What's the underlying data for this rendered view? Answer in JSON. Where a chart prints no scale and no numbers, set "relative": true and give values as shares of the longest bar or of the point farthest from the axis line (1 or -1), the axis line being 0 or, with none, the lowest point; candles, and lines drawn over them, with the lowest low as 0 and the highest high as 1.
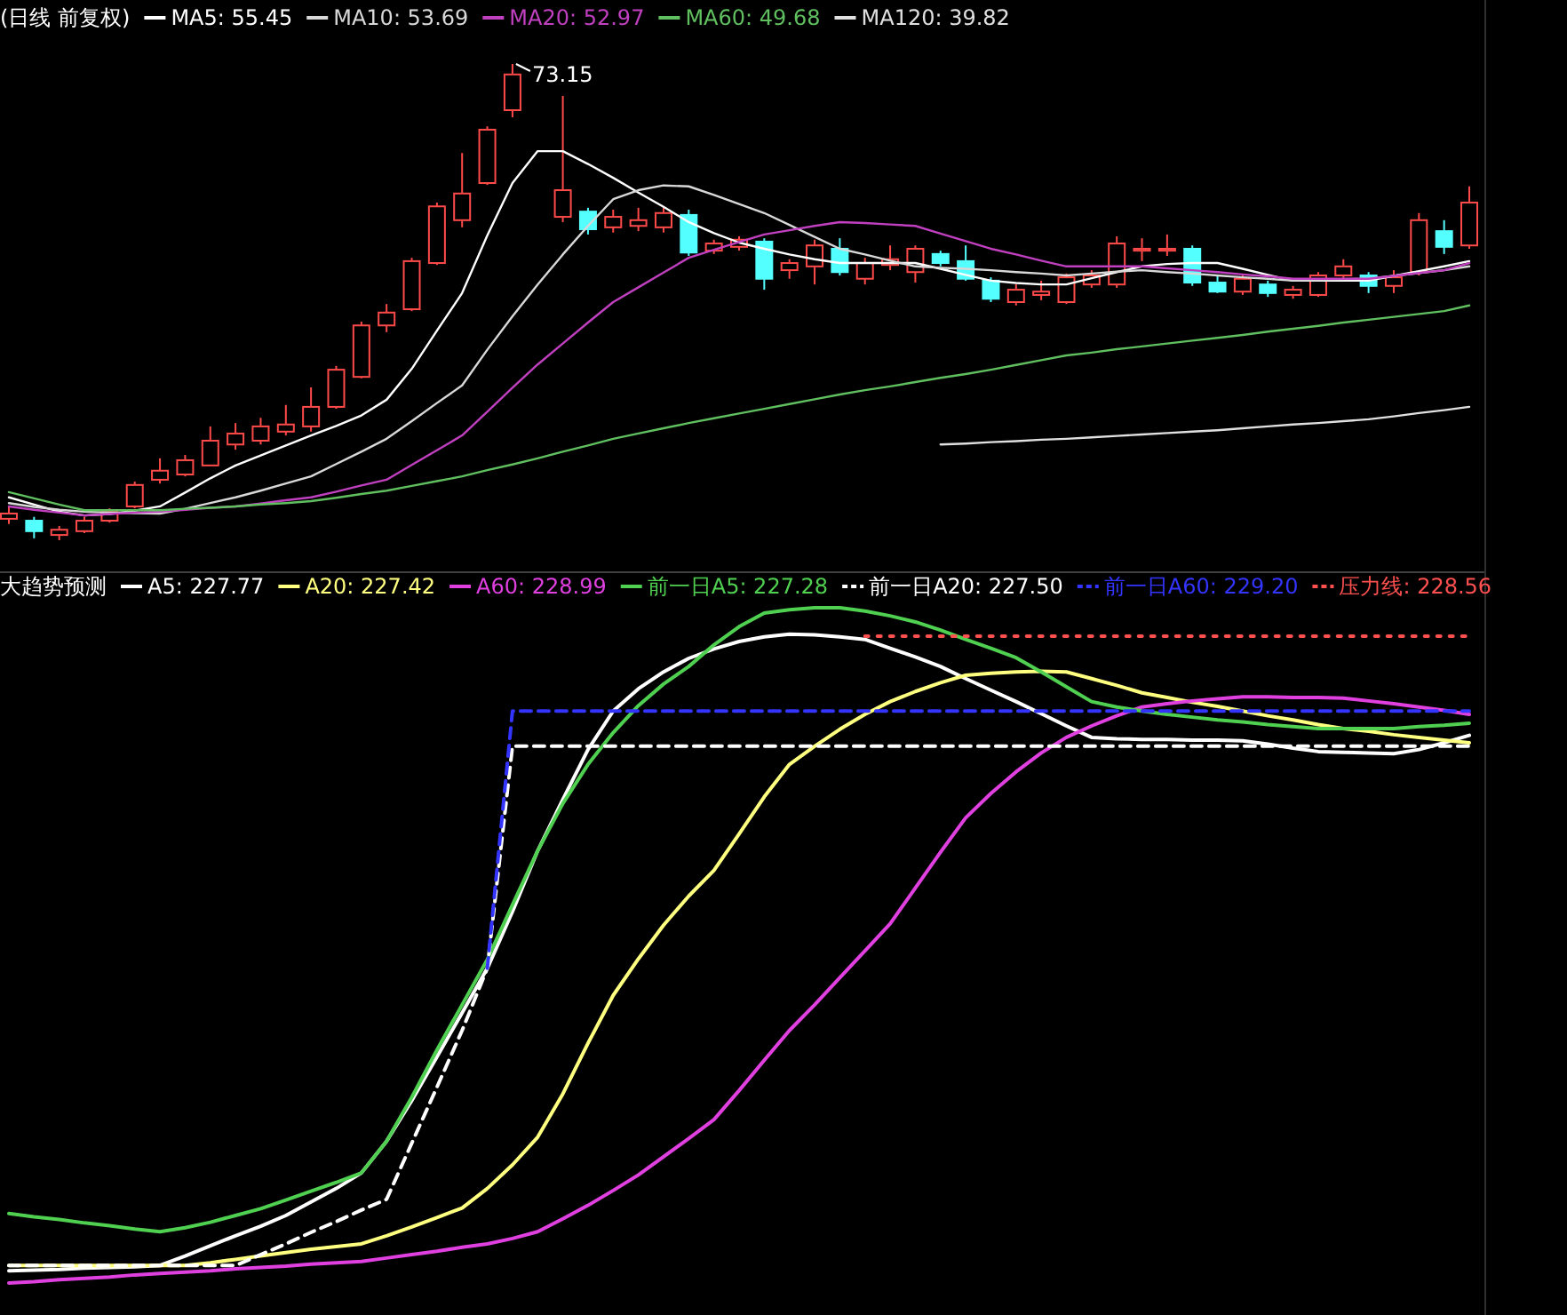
{
  "chart_data": [
    {
      "type": "candlestick",
      "title": "(日线 前复权)",
      "relative": true,
      "legend": "top left",
      "categories": [
        null,
        null,
        null,
        null,
        null,
        null,
        null,
        null,
        null,
        null,
        null,
        null,
        null,
        null,
        null,
        null,
        null,
        null,
        null,
        null,
        null,
        null,
        null,
        null,
        null,
        null,
        null,
        null,
        null,
        null,
        null,
        null,
        null,
        null,
        null,
        null,
        null,
        null,
        null,
        null,
        null,
        null,
        null,
        null,
        null,
        null,
        null,
        null,
        null,
        null,
        null,
        null,
        null,
        null,
        null,
        null,
        null,
        null,
        null
      ],
      "ohlc": [
        [
          0.045,
          0.071,
          0.034,
          0.056
        ],
        [
          0.041,
          0.049,
          0.004,
          0.019
        ],
        [
          0.011,
          0.03,
          0,
          0.022
        ],
        [
          0.019,
          0.049,
          0.015,
          0.041
        ],
        [
          0.041,
          0.067,
          0.037,
          0.06
        ],
        [
          0.071,
          0.123,
          0.067,
          0.116
        ],
        [
          0.127,
          0.172,
          0.119,
          0.146
        ],
        [
          0.138,
          0.179,
          0.134,
          0.168
        ],
        [
          0.157,
          0.239,
          0.157,
          0.209
        ],
        [
          0.201,
          0.246,
          0.19,
          0.224
        ],
        [
          0.209,
          0.257,
          0.201,
          0.239
        ],
        [
          0.228,
          0.284,
          0.22,
          0.243
        ],
        [
          0.239,
          0.321,
          0.228,
          0.28
        ],
        [
          0.28,
          0.366,
          0.276,
          0.358
        ],
        [
          0.343,
          0.459,
          0.34,
          0.451
        ],
        [
          0.451,
          0.496,
          0.437,
          0.478
        ],
        [
          0.485,
          0.593,
          0.481,
          0.586
        ],
        [
          0.582,
          0.709,
          0.578,
          0.701
        ],
        [
          0.672,
          0.813,
          0.657,
          0.728
        ],
        [
          0.75,
          0.869,
          0.746,
          0.862
        ],
        [
          0.903,
          1,
          0.888,
          0.978
        ],
        null,
        [
          0.679,
          0.933,
          0.668,
          0.735
        ],
        [
          0.69,
          0.698,
          0.642,
          0.653
        ],
        [
          0.657,
          0.694,
          0.646,
          0.679
        ],
        [
          0.66,
          0.698,
          0.649,
          0.672
        ],
        [
          0.657,
          0.701,
          0.646,
          0.687
        ],
        [
          0.683,
          0.694,
          0.597,
          0.604
        ],
        [
          0.608,
          0.631,
          0.601,
          0.623
        ],
        [
          0.616,
          0.638,
          0.608,
          0.631
        ],
        [
          0.627,
          0.634,
          0.526,
          0.549
        ],
        [
          0.567,
          0.59,
          0.549,
          0.582
        ],
        [
          0.575,
          0.631,
          0.537,
          0.619
        ],
        [
          0.612,
          0.634,
          0.556,
          0.563
        ],
        [
          0.549,
          0.593,
          0.537,
          0.582
        ],
        [
          0.578,
          0.619,
          0.567,
          0.59
        ],
        [
          0.563,
          0.619,
          0.541,
          0.612
        ],
        [
          0.601,
          0.608,
          0.575,
          0.582
        ],
        [
          0.586,
          0.619,
          0.545,
          0.549
        ],
        [
          0.545,
          0.552,
          0.5,
          0.507
        ],
        [
          0.5,
          0.537,
          0.493,
          0.526
        ],
        [
          0.515,
          0.545,
          0.504,
          0.522
        ],
        [
          0.5,
          0.56,
          0.496,
          0.552
        ],
        [
          0.537,
          0.567,
          0.53,
          0.556
        ],
        [
          0.537,
          0.638,
          0.53,
          0.623
        ],
        [
          0.608,
          0.634,
          0.586,
          0.612
        ],
        [
          0.608,
          0.642,
          0.597,
          0.612
        ],
        [
          0.612,
          0.619,
          0.534,
          0.541
        ],
        [
          0.541,
          0.556,
          0.519,
          0.522
        ],
        [
          0.522,
          0.556,
          0.515,
          0.549
        ],
        [
          0.537,
          0.545,
          0.511,
          0.519
        ],
        [
          0.515,
          0.534,
          0.507,
          0.526
        ],
        [
          0.515,
          0.563,
          0.511,
          0.556
        ],
        [
          0.556,
          0.59,
          0.549,
          0.575
        ],
        [
          0.556,
          0.563,
          0.519,
          0.534
        ],
        [
          0.534,
          0.567,
          0.519,
          0.552
        ],
        [
          0.563,
          0.687,
          0.556,
          0.672
        ],
        [
          0.649,
          0.672,
          0.601,
          0.616
        ],
        [
          0.619,
          0.743,
          0.612,
          0.709
        ]
      ],
      "series": [
        {
          "name": "MA5: 55.45",
          "type": "line",
          "color": "#ffffff",
          "values": [
            0.09,
            0.075,
            0.06,
            0.052,
            0.055,
            0.062,
            0.071,
            0.1,
            0.13,
            0.157,
            0.178,
            0.199,
            0.22,
            0.24,
            0.262,
            0.295,
            0.36,
            0.44,
            0.519,
            0.64,
            0.75,
            0.817,
            0.817,
            0.79,
            0.761,
            0.73,
            0.7,
            0.668,
            0.645,
            0.625,
            0.612,
            0.6,
            0.59,
            0.582,
            0.582,
            0.582,
            0.582,
            0.57,
            0.557,
            0.545,
            0.54,
            0.537,
            0.537,
            0.55,
            0.563,
            0.575,
            0.58,
            0.582,
            0.582,
            0.57,
            0.557,
            0.545,
            0.545,
            0.545,
            0.545,
            0.555,
            0.565,
            0.575,
            0.586
          ]
        },
        {
          "name": "MA10: 53.69",
          "type": "line",
          "color": "#d8d8d8",
          "values": [
            0.078,
            0.07,
            0.064,
            0.06,
            0.058,
            0.057,
            0.056,
            0.066,
            0.078,
            0.09,
            0.104,
            0.119,
            0.134,
            0.16,
            0.186,
            0.213,
            0.25,
            0.288,
            0.325,
            0.4,
            0.47,
            0.537,
            0.6,
            0.66,
            0.716,
            0.735,
            0.745,
            0.743,
            0.725,
            0.706,
            0.687,
            0.662,
            0.637,
            0.612,
            0.6,
            0.587,
            0.575,
            0.572,
            0.57,
            0.567,
            0.563,
            0.56,
            0.556,
            0.56,
            0.564,
            0.567,
            0.563,
            0.56,
            0.556,
            0.552,
            0.549,
            0.545,
            0.546,
            0.548,
            0.549,
            0.555,
            0.561,
            0.567,
            0.575
          ]
        },
        {
          "name": "MA20: 52.97",
          "type": "line",
          "color": "#c040c0",
          "values": [
            0.071,
            0.064,
            0.058,
            0.052,
            0.055,
            0.058,
            0.06,
            0.064,
            0.068,
            0.071,
            0.077,
            0.084,
            0.09,
            0.102,
            0.115,
            0.127,
            0.158,
            0.189,
            0.22,
            0.27,
            0.32,
            0.369,
            0.413,
            0.457,
            0.5,
            0.531,
            0.562,
            0.593,
            0.61,
            0.626,
            0.642,
            0.651,
            0.66,
            0.668,
            0.666,
            0.663,
            0.66,
            0.644,
            0.628,
            0.612,
            0.6,
            0.587,
            0.575,
            0.575,
            0.575,
            0.575,
            0.571,
            0.567,
            0.563,
            0.558,
            0.554,
            0.549,
            0.549,
            0.549,
            0.549,
            0.555,
            0.561,
            0.567,
            0.582
          ]
        },
        {
          "name": "MA60: 49.68",
          "type": "line",
          "color": "#60c060",
          "values": [
            0.101,
            0.088,
            0.075,
            0.063,
            0.063,
            0.063,
            0.063,
            0.066,
            0.068,
            0.071,
            0.075,
            0.078,
            0.082,
            0.089,
            0.097,
            0.104,
            0.114,
            0.124,
            0.134,
            0.147,
            0.159,
            0.172,
            0.186,
            0.199,
            0.213,
            0.224,
            0.235,
            0.246,
            0.256,
            0.266,
            0.276,
            0.286,
            0.296,
            0.306,
            0.315,
            0.323,
            0.332,
            0.341,
            0.349,
            0.358,
            0.368,
            0.378,
            0.388,
            0.394,
            0.401,
            0.407,
            0.413,
            0.419,
            0.425,
            0.431,
            0.438,
            0.444,
            0.45,
            0.457,
            0.463,
            0.469,
            0.475,
            0.481,
            0.493
          ]
        },
        {
          "name": "MA120: 39.82",
          "type": "line",
          "color": "#e0e0e0",
          "values": [
            null,
            null,
            null,
            null,
            null,
            null,
            null,
            null,
            null,
            null,
            null,
            null,
            null,
            null,
            null,
            null,
            null,
            null,
            null,
            null,
            null,
            null,
            null,
            null,
            null,
            null,
            null,
            null,
            null,
            null,
            null,
            null,
            null,
            null,
            null,
            null,
            null,
            0.201,
            0.203,
            0.206,
            0.208,
            0.211,
            0.213,
            0.216,
            0.219,
            0.222,
            0.225,
            0.228,
            0.231,
            0.235,
            0.239,
            0.243,
            0.246,
            0.25,
            0.254,
            0.26,
            0.267,
            0.273,
            0.28
          ]
        }
      ],
      "annotations": [
        "73.15"
      ]
    },
    {
      "type": "line",
      "title": "大趋势预测",
      "relative": true,
      "legend": "top left",
      "categories": [
        null,
        null,
        null,
        null,
        null,
        null,
        null,
        null,
        null,
        null,
        null,
        null,
        null,
        null,
        null,
        null,
        null,
        null,
        null,
        null,
        null,
        null,
        null,
        null,
        null,
        null,
        null,
        null,
        null,
        null,
        null,
        null,
        null,
        null,
        null,
        null,
        null,
        null,
        null,
        null,
        null,
        null,
        null,
        null,
        null,
        null,
        null,
        null,
        null,
        null,
        null,
        null,
        null,
        null,
        null,
        null,
        null,
        null,
        null
      ],
      "series": [
        {
          "name": "A5: 227.77",
          "color": "#ffffff",
          "values": [
            0.018,
            0.019,
            0.02,
            0.022,
            0.023,
            0.024,
            0.026,
            0.04,
            0.055,
            0.07,
            0.084,
            0.1,
            0.12,
            0.14,
            0.163,
            0.21,
            0.27,
            0.335,
            0.4,
            0.466,
            0.55,
            0.64,
            0.716,
            0.79,
            0.847,
            0.88,
            0.905,
            0.925,
            0.939,
            0.95,
            0.957,
            0.961,
            0.96,
            0.957,
            0.953,
            0.94,
            0.927,
            0.913,
            0.895,
            0.878,
            0.861,
            0.843,
            0.825,
            0.808,
            0.806,
            0.805,
            0.805,
            0.804,
            0.804,
            0.803,
            0.798,
            0.792,
            0.787,
            0.786,
            0.785,
            0.784,
            0.79,
            0.8,
            0.811
          ]
        },
        {
          "name": "A20: 227.42",
          "color": "#ffff80",
          "values": [
            0.026,
            0.026,
            0.026,
            0.026,
            0.026,
            0.026,
            0.026,
            0.026,
            0.03,
            0.035,
            0.04,
            0.045,
            0.05,
            0.054,
            0.058,
            0.07,
            0.083,
            0.097,
            0.111,
            0.14,
            0.175,
            0.216,
            0.28,
            0.355,
            0.426,
            0.48,
            0.53,
            0.573,
            0.611,
            0.665,
            0.72,
            0.768,
            0.795,
            0.82,
            0.842,
            0.861,
            0.876,
            0.889,
            0.9,
            0.903,
            0.905,
            0.906,
            0.905,
            0.895,
            0.885,
            0.874,
            0.867,
            0.86,
            0.854,
            0.847,
            0.84,
            0.834,
            0.827,
            0.821,
            0.817,
            0.812,
            0.808,
            0.804,
            0.8
          ]
        },
        {
          "name": "A60: 228.99",
          "color": "#e040e0",
          "values": [
            0,
            0.002,
            0.005,
            0.007,
            0.009,
            0.012,
            0.014,
            0.016,
            0.018,
            0.021,
            0.023,
            0.025,
            0.028,
            0.03,
            0.032,
            0.037,
            0.042,
            0.047,
            0.053,
            0.058,
            0.066,
            0.076,
            0.095,
            0.115,
            0.137,
            0.16,
            0.187,
            0.214,
            0.242,
            0.285,
            0.33,
            0.374,
            0.412,
            0.452,
            0.492,
            0.532,
            0.585,
            0.638,
            0.689,
            0.725,
            0.757,
            0.785,
            0.808,
            0.825,
            0.84,
            0.853,
            0.858,
            0.862,
            0.865,
            0.868,
            0.868,
            0.867,
            0.867,
            0.866,
            0.862,
            0.858,
            0.853,
            0.848,
            0.842
          ]
        },
        {
          "name": "前一日A5: 227.28",
          "color": "#50d050",
          "values": [
            0.103,
            0.098,
            0.094,
            0.089,
            0.085,
            0.08,
            0.076,
            0.082,
            0.09,
            0.1,
            0.11,
            0.123,
            0.136,
            0.149,
            0.163,
            0.21,
            0.275,
            0.345,
            0.412,
            0.479,
            0.56,
            0.64,
            0.71,
            0.768,
            0.815,
            0.855,
            0.887,
            0.913,
            0.945,
            0.972,
            0.992,
            0.997,
            1,
            1,
            0.995,
            0.988,
            0.979,
            0.967,
            0.953,
            0.94,
            0.926,
            0.905,
            0.883,
            0.861,
            0.853,
            0.847,
            0.842,
            0.838,
            0.834,
            0.831,
            0.827,
            0.824,
            0.821,
            0.821,
            0.821,
            0.821,
            0.824,
            0.826,
            0.829
          ]
        },
        {
          "name": "前一日A20: 227.50",
          "color": "#ffffff",
          "line_style": "dashed",
          "values": [
            0.026,
            0.026,
            0.026,
            0.026,
            0.026,
            0.026,
            0.026,
            0.026,
            0.026,
            0.026,
            0.042,
            0.058,
            0.075,
            0.091,
            0.108,
            0.124,
            0.207,
            0.29,
            0.374,
            0.466,
            0.795,
            0.795,
            0.795,
            0.795,
            0.795,
            0.795,
            0.795,
            0.795,
            0.795,
            0.795,
            0.795,
            0.795,
            0.795,
            0.795,
            0.795,
            0.795,
            0.795,
            0.795,
            0.795,
            0.795,
            0.795,
            0.795,
            0.795,
            0.795,
            0.795,
            0.795,
            0.795,
            0.795,
            0.795,
            0.795,
            0.795,
            0.795,
            0.795,
            0.795,
            0.795,
            0.795,
            0.795,
            0.795,
            0.795
          ]
        },
        {
          "name": "前一日A60: 229.20",
          "color": "#3434ff",
          "line_style": "dashed",
          "values": [
            null,
            null,
            null,
            null,
            null,
            null,
            null,
            null,
            null,
            null,
            null,
            null,
            null,
            null,
            null,
            null,
            null,
            null,
            null,
            0.466,
            0.847,
            0.847,
            0.847,
            0.847,
            0.847,
            0.847,
            0.847,
            0.847,
            0.847,
            0.847,
            0.847,
            0.847,
            0.847,
            0.847,
            0.847,
            0.847,
            0.847,
            0.847,
            0.847,
            0.847,
            0.847,
            0.847,
            0.847,
            0.847,
            0.847,
            0.847,
            0.847,
            0.847,
            0.847,
            0.847,
            0.847,
            0.847,
            0.847,
            0.847,
            0.847,
            0.847,
            0.847,
            0.847,
            0.847
          ]
        },
        {
          "name": "压力线: 228.56",
          "color": "#ff5050",
          "line_style": "dotted",
          "values": [
            null,
            null,
            null,
            null,
            null,
            null,
            null,
            null,
            null,
            null,
            null,
            null,
            null,
            null,
            null,
            null,
            null,
            null,
            null,
            null,
            null,
            null,
            null,
            null,
            null,
            null,
            null,
            null,
            null,
            null,
            null,
            null,
            null,
            null,
            0.958,
            0.958,
            0.958,
            0.958,
            0.958,
            0.958,
            0.958,
            0.958,
            0.958,
            0.958,
            0.958,
            0.958,
            0.958,
            0.958,
            0.958,
            0.958,
            0.958,
            0.958,
            0.958,
            0.958,
            0.958,
            0.958,
            0.958,
            0.958,
            0.958
          ]
        }
      ]
    }
  ]
}
